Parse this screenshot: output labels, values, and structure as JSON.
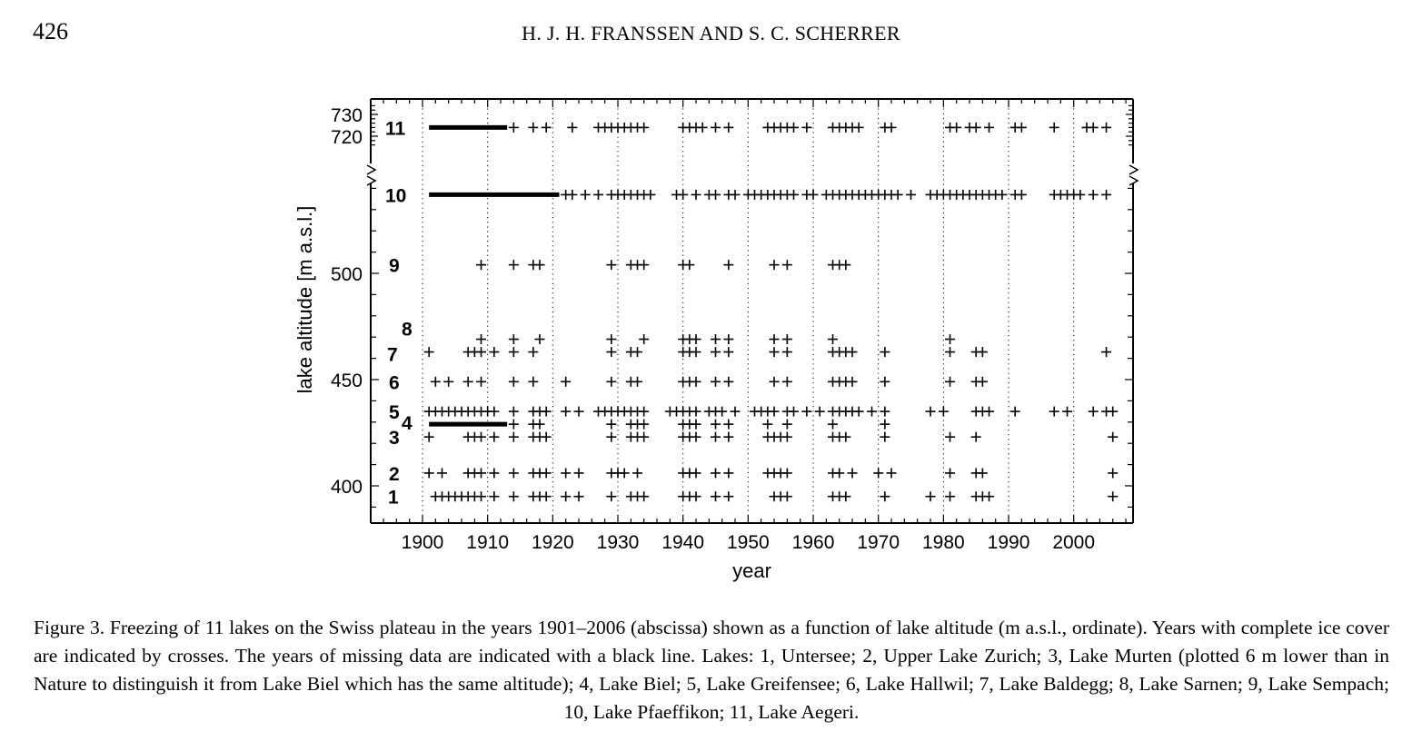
{
  "header": {
    "page_number": "426",
    "running_head": "H. J. H. FRANSSEN AND S. C. SCHERRER"
  },
  "caption": "Figure 3. Freezing of 11 lakes on the Swiss plateau in the years 1901–2006 (abscissa) shown as a function of lake altitude (m a.s.l., ordinate). Years with complete ice cover are indicated by crosses. The years of missing data are indicated with a black line. Lakes: 1, Untersee; 2, Upper Lake Zurich; 3, Lake Murten (plotted 6 m lower than in Nature to distinguish it from Lake Biel which has the same altitude); 4, Lake Biel; 5, Lake Greifensee; 6, Lake Hallwil; 7, Lake Baldegg; 8, Lake Sarnen; 9, Lake Sempach; 10, Lake Pfaeffikon; 11, Lake Aegeri.",
  "chart_data": {
    "type": "scatter",
    "xlabel": "year",
    "ylabel": "lake altitude [m a.s.l.]",
    "xlim": [
      1893,
      2010
    ],
    "x_ticks": [
      "1900",
      "1910",
      "1920",
      "1930",
      "1940",
      "1950",
      "1960",
      "1970",
      "1980",
      "1990",
      "2000"
    ],
    "y_ticks_lower": [
      "400",
      "450",
      "500"
    ],
    "y_ticks_upper": [
      "720",
      "730"
    ],
    "axis_break": "between 540 and 715 m",
    "marker": "cross",
    "missing_data_marker": "black line",
    "series": [
      {
        "label": "1",
        "altitude": 395,
        "years": [
          1902,
          1903,
          1904,
          1905,
          1906,
          1907,
          1908,
          1909,
          1911,
          1914,
          1917,
          1918,
          1919,
          1922,
          1924,
          1929,
          1932,
          1933,
          1934,
          1940,
          1941,
          1942,
          1945,
          1947,
          1954,
          1955,
          1956,
          1963,
          1964,
          1965,
          1971,
          1978,
          1981,
          1985,
          1986,
          1987,
          2006
        ],
        "missing": []
      },
      {
        "label": "2",
        "altitude": 406,
        "years": [
          1901,
          1903,
          1907,
          1908,
          1909,
          1911,
          1914,
          1917,
          1918,
          1919,
          1922,
          1924,
          1929,
          1930,
          1931,
          1933,
          1940,
          1941,
          1942,
          1945,
          1947,
          1953,
          1954,
          1955,
          1956,
          1963,
          1964,
          1966,
          1970,
          1972,
          1981,
          1985,
          1986,
          2006
        ],
        "missing": []
      },
      {
        "label": "3",
        "altitude": 423,
        "years": [
          1901,
          1907,
          1908,
          1909,
          1911,
          1914,
          1917,
          1918,
          1919,
          1929,
          1932,
          1933,
          1934,
          1940,
          1941,
          1942,
          1945,
          1947,
          1953,
          1954,
          1955,
          1956,
          1963,
          1964,
          1965,
          1971,
          1981,
          1985,
          2006
        ],
        "missing": []
      },
      {
        "label": "4",
        "altitude": 429,
        "years": [
          1914,
          1917,
          1918,
          1929,
          1932,
          1933,
          1934,
          1940,
          1941,
          1942,
          1945,
          1947,
          1953,
          1956,
          1963,
          1971
        ],
        "missing": [
          [
            1901,
            1913
          ]
        ]
      },
      {
        "label": "5",
        "altitude": 435,
        "years": [
          1901,
          1902,
          1903,
          1904,
          1905,
          1906,
          1907,
          1908,
          1909,
          1910,
          1911,
          1914,
          1917,
          1918,
          1919,
          1922,
          1924,
          1927,
          1928,
          1929,
          1930,
          1931,
          1932,
          1933,
          1934,
          1938,
          1939,
          1940,
          1941,
          1942,
          1944,
          1945,
          1946,
          1948,
          1951,
          1952,
          1953,
          1954,
          1956,
          1957,
          1959,
          1961,
          1963,
          1964,
          1965,
          1966,
          1967,
          1969,
          1971,
          1978,
          1980,
          1985,
          1986,
          1987,
          1991,
          1997,
          1999,
          2003,
          2005,
          2006
        ],
        "missing": []
      },
      {
        "label": "6",
        "altitude": 449,
        "years": [
          1902,
          1904,
          1907,
          1909,
          1914,
          1917,
          1922,
          1929,
          1932,
          1933,
          1940,
          1941,
          1942,
          1945,
          1947,
          1954,
          1956,
          1963,
          1964,
          1965,
          1966,
          1971,
          1981,
          1985,
          1986
        ],
        "missing": []
      },
      {
        "label": "7",
        "altitude": 463,
        "years": [
          1901,
          1907,
          1908,
          1909,
          1911,
          1914,
          1917,
          1929,
          1932,
          1933,
          1940,
          1941,
          1942,
          1945,
          1947,
          1954,
          1956,
          1963,
          1964,
          1965,
          1966,
          1971,
          1981,
          1985,
          1986,
          2005
        ],
        "missing": []
      },
      {
        "label": "8",
        "altitude": 469,
        "years": [
          1909,
          1914,
          1918,
          1929,
          1934,
          1940,
          1941,
          1942,
          1945,
          1947,
          1954,
          1956,
          1963,
          1981
        ],
        "missing": []
      },
      {
        "label": "9",
        "altitude": 504,
        "years": [
          1909,
          1914,
          1917,
          1918,
          1929,
          1932,
          1933,
          1934,
          1940,
          1941,
          1947,
          1954,
          1956,
          1963,
          1964,
          1965
        ],
        "missing": []
      },
      {
        "label": "10",
        "altitude": 537,
        "years": [
          1922,
          1923,
          1925,
          1927,
          1929,
          1930,
          1931,
          1932,
          1933,
          1934,
          1935,
          1939,
          1940,
          1942,
          1944,
          1945,
          1947,
          1948,
          1950,
          1951,
          1952,
          1953,
          1954,
          1955,
          1956,
          1957,
          1959,
          1960,
          1962,
          1963,
          1964,
          1965,
          1966,
          1967,
          1968,
          1969,
          1970,
          1971,
          1972,
          1973,
          1975,
          1978,
          1979,
          1980,
          1981,
          1982,
          1983,
          1984,
          1985,
          1986,
          1987,
          1988,
          1989,
          1991,
          1992,
          1997,
          1998,
          1999,
          2000,
          2001,
          2003,
          2005
        ],
        "missing": [
          [
            1901,
            1921
          ]
        ]
      },
      {
        "label": "11",
        "altitude": 724,
        "years": [
          1914,
          1917,
          1919,
          1923,
          1927,
          1928,
          1929,
          1930,
          1931,
          1932,
          1933,
          1934,
          1940,
          1941,
          1942,
          1943,
          1945,
          1947,
          1953,
          1954,
          1955,
          1956,
          1957,
          1959,
          1963,
          1964,
          1965,
          1966,
          1967,
          1971,
          1972,
          1981,
          1982,
          1984,
          1985,
          1987,
          1991,
          1992,
          1997,
          2002,
          2003,
          2005
        ],
        "missing": [
          [
            1901,
            1913
          ]
        ]
      }
    ]
  }
}
